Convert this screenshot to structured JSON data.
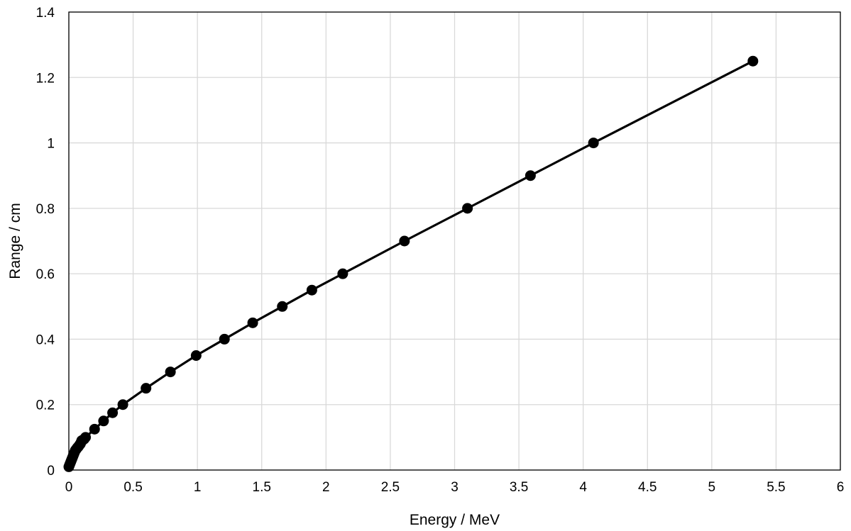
{
  "chart_data": {
    "type": "scatter",
    "title": "",
    "xlabel": "Energy / MeV",
    "ylabel": "Range / cm",
    "xlim": [
      0,
      6
    ],
    "ylim": [
      0,
      1.4
    ],
    "x_ticks": [
      0,
      0.5,
      1,
      1.5,
      2,
      2.5,
      3,
      3.5,
      4,
      4.5,
      5,
      5.5,
      6
    ],
    "x_tick_labels": [
      "0",
      "0.5",
      "1",
      "1.5",
      "2",
      "2.5",
      "3",
      "3.5",
      "4",
      "4.5",
      "5",
      "5.5",
      "6"
    ],
    "y_ticks": [
      0,
      0.2,
      0.4,
      0.6,
      0.8,
      1,
      1.2,
      1.4
    ],
    "y_tick_labels": [
      "0",
      "0.2",
      "0.4",
      "0.6",
      "0.8",
      "1",
      "1.2",
      "1.4"
    ],
    "grid": true,
    "legend": "none",
    "marker": "circle",
    "line_connected": true,
    "color": "#000000",
    "series": [
      {
        "x": [
          0.0,
          0.005,
          0.01,
          0.015,
          0.02,
          0.025,
          0.03,
          0.035,
          0.04,
          0.045,
          0.05,
          0.055,
          0.06,
          0.065,
          0.07,
          0.075,
          0.08,
          0.085,
          0.09,
          0.095,
          0.1,
          0.11,
          0.12,
          0.13,
          0.2,
          0.27,
          0.34,
          0.42,
          0.6,
          0.79,
          0.99,
          1.21,
          1.43,
          1.66,
          1.89,
          2.13,
          2.61,
          3.1,
          3.59,
          4.08,
          5.32
        ],
        "y": [
          0.01,
          0.015,
          0.02,
          0.025,
          0.03,
          0.035,
          0.04,
          0.045,
          0.05,
          0.055,
          0.06,
          0.062,
          0.065,
          0.068,
          0.07,
          0.072,
          0.075,
          0.078,
          0.08,
          0.085,
          0.09,
          0.092,
          0.095,
          0.1,
          0.125,
          0.15,
          0.175,
          0.2,
          0.25,
          0.3,
          0.35,
          0.4,
          0.45,
          0.5,
          0.55,
          0.6,
          0.7,
          0.8,
          0.9,
          1.0,
          1.25
        ]
      }
    ]
  }
}
